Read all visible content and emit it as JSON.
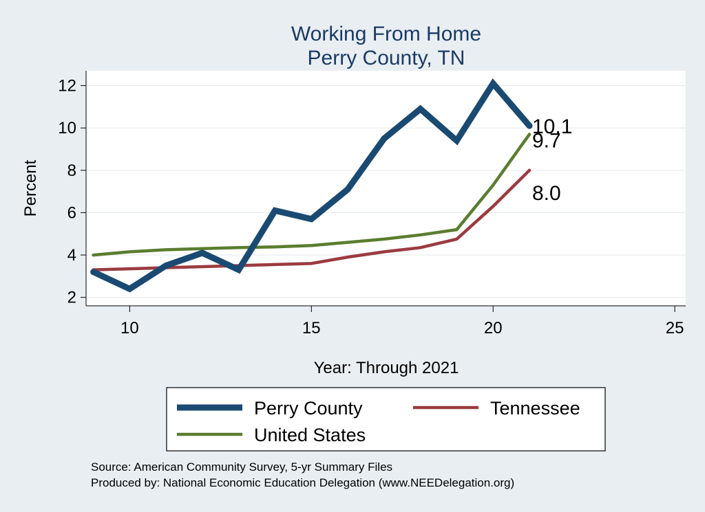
{
  "chart_data": {
    "type": "line",
    "title": "Working From Home",
    "subtitle": "Perry County, TN",
    "xlabel": "Year: Through 2021",
    "ylabel": "Percent",
    "xlim": [
      8.8,
      25.3
    ],
    "ylim": [
      1.6,
      12.7
    ],
    "x_ticks": [
      10,
      15,
      20,
      25
    ],
    "y_ticks": [
      2,
      4,
      6,
      8,
      10,
      12
    ],
    "grid": true,
    "legend_position": "bottom",
    "series": [
      {
        "name": "Perry County",
        "color": "#1a4a72",
        "x": [
          9,
          10,
          11,
          12,
          13,
          14,
          15,
          16,
          17,
          18,
          19,
          20,
          21
        ],
        "y": [
          3.2,
          2.4,
          3.5,
          4.1,
          3.3,
          6.1,
          5.7,
          7.1,
          9.5,
          10.9,
          9.4,
          12.1,
          10.1
        ],
        "end_label": "10.1"
      },
      {
        "name": "Tennessee",
        "color": "#9b3b40",
        "x": [
          9,
          10,
          11,
          12,
          13,
          14,
          15,
          16,
          17,
          18,
          19,
          20,
          21
        ],
        "y": [
          3.3,
          3.35,
          3.4,
          3.45,
          3.5,
          3.55,
          3.6,
          3.9,
          4.15,
          4.35,
          4.75,
          6.3,
          8.0
        ],
        "end_label": "8.0"
      },
      {
        "name": "United States",
        "color": "#5b7d2f",
        "x": [
          9,
          10,
          11,
          12,
          13,
          14,
          15,
          16,
          17,
          18,
          19,
          20,
          21
        ],
        "y": [
          4.0,
          4.15,
          4.25,
          4.3,
          4.35,
          4.38,
          4.45,
          4.6,
          4.75,
          4.95,
          5.2,
          7.3,
          9.7
        ],
        "end_label": "9.7"
      }
    ],
    "source_lines": [
      "Source: American Community Survey, 5-yr Summary Files",
      "Produced by: National Economic Education Delegation (www.NEEDelegation.org)"
    ]
  }
}
